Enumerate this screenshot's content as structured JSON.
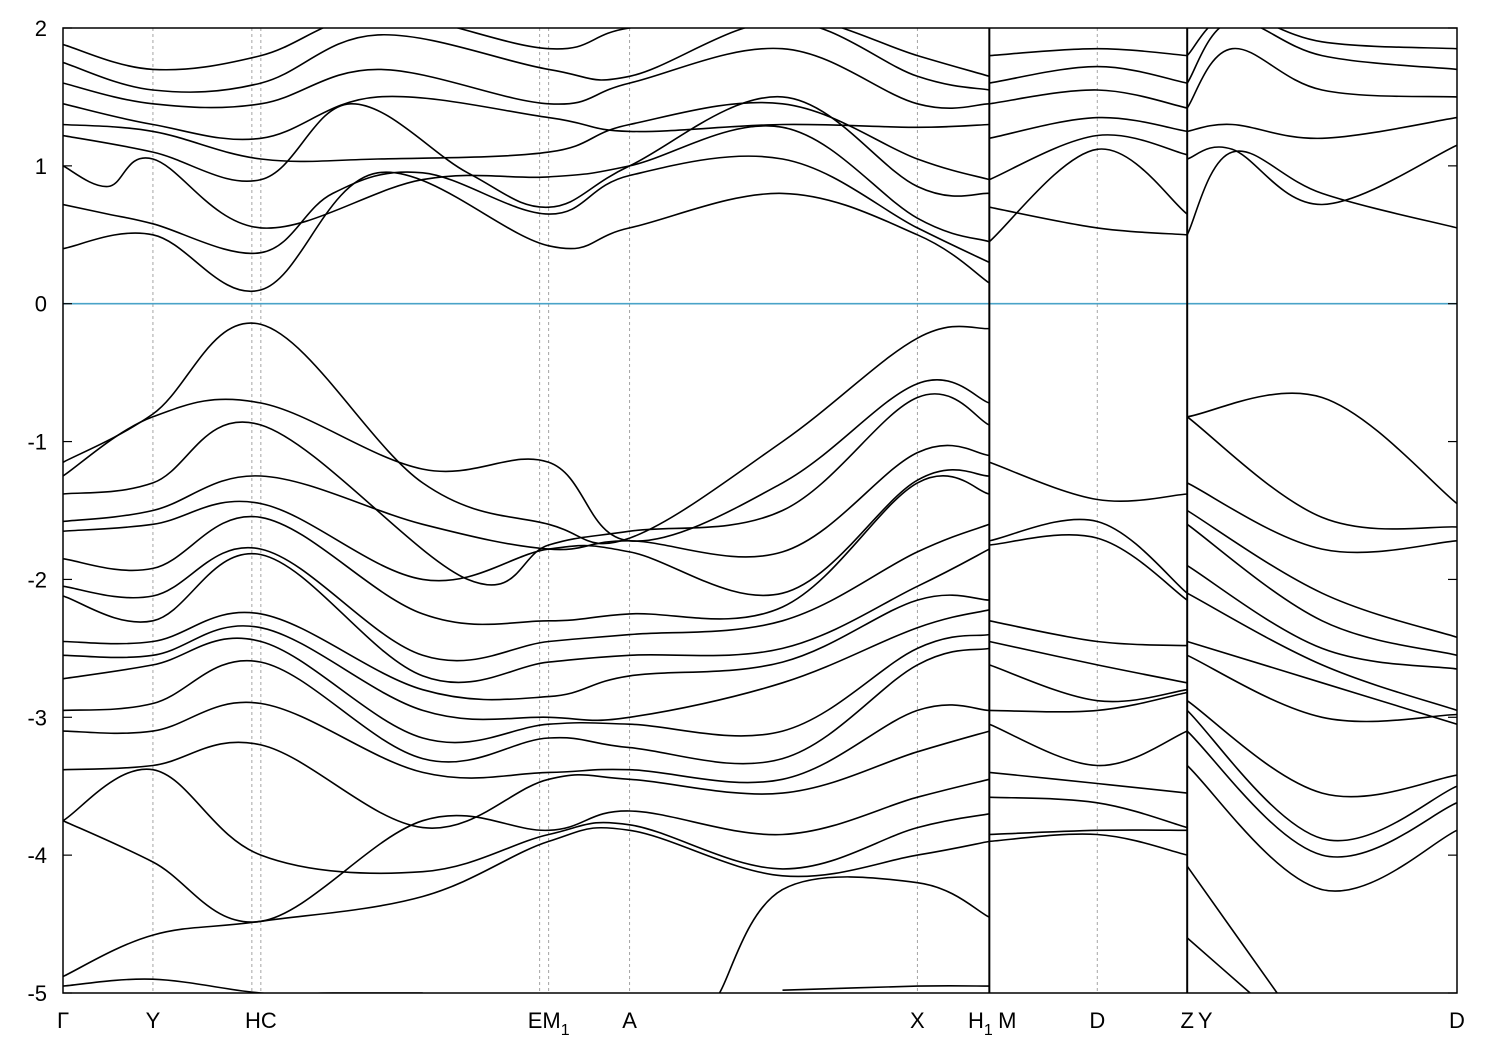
{
  "chart_data": {
    "type": "line",
    "title": "",
    "xlabel": "",
    "ylabel": "",
    "ylim": [
      -5,
      2
    ],
    "y_ticks": [
      2,
      1,
      0,
      -1,
      -2,
      -3,
      -4,
      -5
    ],
    "y_tick_labels": [
      "2",
      "1",
      "0",
      "-1",
      "-2",
      "-3",
      "-4",
      "-5"
    ],
    "fermi_level": 0,
    "grid": false,
    "kpath_segments": [
      {
        "from": "Γ",
        "to": "Y",
        "x": [
          0,
          1
        ]
      },
      {
        "from": "Y",
        "to": "HC",
        "x": [
          1,
          2.2
        ]
      },
      {
        "from": "HC",
        "to": "EM1",
        "x": [
          2.2,
          5.4
        ]
      },
      {
        "from": "EM1",
        "to": "A",
        "x": [
          5.4,
          6.3
        ]
      },
      {
        "from": "A",
        "to": "X",
        "x": [
          6.3,
          9.5
        ]
      },
      {
        "from": "X",
        "to": "H1",
        "x": [
          9.5,
          10.3
        ]
      },
      {
        "from": "M",
        "to": "D",
        "x": [
          10.3,
          11.5
        ]
      },
      {
        "from": "D",
        "to": "Z",
        "x": [
          11.5,
          12.5
        ]
      },
      {
        "from": "Y",
        "to": "D",
        "x": [
          12.5,
          15.5
        ]
      }
    ],
    "x_ticks": [
      {
        "label": "Γ",
        "x": 0
      },
      {
        "label": "Y",
        "x": 1
      },
      {
        "label": "HC",
        "x": 2.2
      },
      {
        "label": "EM",
        "sub": "1",
        "x": 5.4
      },
      {
        "label": "A",
        "x": 6.3
      },
      {
        "label": "X",
        "x": 9.5
      },
      {
        "label": "H",
        "sub": "1",
        "x": 10.2
      },
      {
        "label": "M",
        "x": 10.5
      },
      {
        "label": "D",
        "x": 11.5
      },
      {
        "label": "Z",
        "x": 12.5
      },
      {
        "label": "Y",
        "x": 12.7
      },
      {
        "label": "D",
        "x": 15.5
      }
    ],
    "high_symmetry_x": [
      1,
      2.1,
      2.2,
      5.3,
      5.4,
      6.3,
      9.5,
      10.3,
      11.5,
      12.5,
      15.5
    ],
    "path_breaks_x": [
      10.3,
      12.5
    ],
    "series": [
      {
        "x": [
          0,
          1,
          2.2,
          3.5,
          5.4,
          6.3,
          8,
          9.5,
          10.3
        ],
        "y": [
          0.4,
          0.5,
          0.1,
          0.95,
          0.42,
          0.55,
          0.8,
          0.5,
          0.15
        ]
      },
      {
        "x": [
          0,
          0.5,
          1,
          2.2,
          3,
          4,
          5.4,
          6.3,
          8,
          9.5,
          10.3
        ],
        "y": [
          0.72,
          0.65,
          0.58,
          0.37,
          0.8,
          0.95,
          0.65,
          0.93,
          1.05,
          0.55,
          0.3
        ]
      },
      {
        "x": [
          0,
          0.5,
          1,
          2.2,
          4,
          5.4,
          6.3,
          8,
          9.5,
          10.3
        ],
        "y": [
          1,
          0.85,
          1.05,
          0.55,
          0.9,
          0.92,
          1,
          1.28,
          0.62,
          0.45
        ]
      },
      {
        "x": [
          0,
          1,
          2.2,
          3.2,
          4.5,
          5.4,
          6.3,
          8,
          9.5,
          10.3
        ],
        "y": [
          1.22,
          1.1,
          0.9,
          1.45,
          0.95,
          0.7,
          1,
          1.5,
          0.85,
          0.8
        ]
      },
      {
        "x": [
          0,
          1,
          2.2,
          3.5,
          5.4,
          6.3,
          8,
          9.5,
          10.3
        ],
        "y": [
          1.3,
          1.25,
          1.05,
          1.05,
          1.1,
          1.3,
          1.45,
          1.05,
          0.9
        ]
      },
      {
        "x": [
          0,
          1,
          2.2,
          3.5,
          5.4,
          6.3,
          8,
          9.5,
          10.3
        ],
        "y": [
          1.45,
          1.3,
          1.2,
          1.5,
          1.35,
          1.25,
          1.3,
          1.28,
          1.3
        ]
      },
      {
        "x": [
          0,
          1,
          2.2,
          3.5,
          5.4,
          6.3,
          8,
          9.5,
          10.3
        ],
        "y": [
          1.6,
          1.45,
          1.45,
          1.7,
          1.45,
          1.6,
          1.85,
          1.45,
          1.45
        ]
      },
      {
        "x": [
          0,
          1,
          2.2,
          3.5,
          5.4,
          6.3,
          8,
          9.5,
          10.3
        ],
        "y": [
          1.75,
          1.55,
          1.6,
          1.95,
          1.7,
          1.65,
          2.05,
          1.65,
          1.55
        ]
      },
      {
        "x": [
          0,
          1,
          2.2,
          3.5,
          5.4,
          6.3,
          8,
          9.5,
          10.3
        ],
        "y": [
          1.88,
          1.7,
          1.8,
          2.1,
          1.85,
          2.0,
          2.1,
          1.8,
          1.65
        ]
      },
      {
        "x": [
          10.3,
          11.5,
          12.5
        ],
        "y": [
          0.7,
          0.55,
          0.5
        ]
      },
      {
        "x": [
          10.3,
          11.5,
          12.5
        ],
        "y": [
          0.45,
          1.12,
          0.65
        ]
      },
      {
        "x": [
          10.3,
          11.5,
          12.5
        ],
        "y": [
          0.9,
          1.22,
          1.08
        ]
      },
      {
        "x": [
          10.3,
          11.5,
          12.5
        ],
        "y": [
          1.2,
          1.35,
          1.25
        ]
      },
      {
        "x": [
          10.3,
          11.5,
          12.5
        ],
        "y": [
          1.45,
          1.55,
          1.42
        ]
      },
      {
        "x": [
          10.3,
          11.5,
          12.5
        ],
        "y": [
          1.6,
          1.72,
          1.6
        ]
      },
      {
        "x": [
          10.3,
          11.5,
          12.5
        ],
        "y": [
          1.8,
          1.85,
          1.8
        ]
      },
      {
        "x": [
          12.5,
          13,
          14,
          15.5
        ],
        "y": [
          0.5,
          1.1,
          0.8,
          0.55
        ]
      },
      {
        "x": [
          12.5,
          13,
          14,
          15.5
        ],
        "y": [
          1.05,
          1.12,
          0.72,
          1.15
        ]
      },
      {
        "x": [
          12.5,
          13,
          14,
          15.5
        ],
        "y": [
          1.25,
          1.3,
          1.2,
          1.35
        ]
      },
      {
        "x": [
          12.5,
          13,
          14,
          15.5
        ],
        "y": [
          1.42,
          1.85,
          1.55,
          1.5
        ]
      },
      {
        "x": [
          12.5,
          13,
          14,
          15.5
        ],
        "y": [
          1.6,
          2.05,
          1.8,
          1.7
        ]
      },
      {
        "x": [
          12.5,
          13,
          14,
          15.5
        ],
        "y": [
          1.8,
          2.1,
          1.9,
          1.85
        ]
      },
      {
        "x": [
          0,
          1,
          2.2,
          4,
          5.4,
          6.3,
          8,
          9.5,
          10.3
        ],
        "y": [
          -1.15,
          -0.8,
          -0.15,
          -1.3,
          -1.6,
          -1.7,
          -1.0,
          -0.25,
          -0.18
        ]
      },
      {
        "x": [
          0,
          1,
          2.2,
          4,
          5.4,
          6.3,
          8,
          9.5,
          10.3
        ],
        "y": [
          -1.25,
          -0.82,
          -0.72,
          -1.2,
          -1.15,
          -1.72,
          -1.3,
          -0.58,
          -0.72
        ]
      },
      {
        "x": [
          0,
          1,
          2.2,
          4.5,
          5.4,
          6.3,
          8,
          9.5,
          10.3
        ],
        "y": [
          -1.38,
          -1.3,
          -0.88,
          -2.0,
          -1.75,
          -1.65,
          -1.5,
          -0.68,
          -0.88
        ]
      },
      {
        "x": [
          0,
          1,
          2.2,
          4,
          5.4,
          6.3,
          8,
          9.5,
          10.3
        ],
        "y": [
          -1.58,
          -1.5,
          -1.25,
          -1.6,
          -1.78,
          -1.72,
          -1.8,
          -1.08,
          -1.1
        ]
      },
      {
        "x": [
          0,
          1,
          2.2,
          4,
          5.4,
          6.3,
          8,
          9.5,
          10.3
        ],
        "y": [
          -1.65,
          -1.6,
          -1.45,
          -2.0,
          -1.78,
          -1.8,
          -2.1,
          -1.28,
          -1.25
        ]
      },
      {
        "x": [
          0,
          1,
          2.2,
          4,
          5.4,
          6.3,
          8,
          9.5,
          10.3
        ],
        "y": [
          -1.85,
          -1.92,
          -1.55,
          -2.25,
          -2.3,
          -2.25,
          -2.2,
          -1.3,
          -1.38
        ]
      },
      {
        "x": [
          0,
          1,
          2.2,
          4,
          5.4,
          6.3,
          8,
          9.5,
          10.3
        ],
        "y": [
          -2.05,
          -2.12,
          -1.78,
          -2.55,
          -2.45,
          -2.4,
          -2.3,
          -1.8,
          -1.6
        ]
      },
      {
        "x": [
          0,
          1,
          2.2,
          4,
          5.4,
          6.3,
          8,
          9.5,
          10.3
        ],
        "y": [
          -2.12,
          -2.3,
          -1.82,
          -2.7,
          -2.6,
          -2.55,
          -2.5,
          -2.05,
          -1.78
        ]
      },
      {
        "x": [
          0,
          1,
          2.2,
          4,
          5.4,
          6.3,
          8,
          9.5,
          10.3
        ],
        "y": [
          -2.45,
          -2.45,
          -2.25,
          -2.8,
          -2.85,
          -2.7,
          -2.6,
          -2.15,
          -2.15
        ]
      },
      {
        "x": [
          0,
          1,
          2.2,
          4,
          5.4,
          6.3,
          8,
          9.5,
          10.3
        ],
        "y": [
          -2.55,
          -2.55,
          -2.35,
          -2.95,
          -3.0,
          -3.0,
          -2.75,
          -2.35,
          -2.22
        ]
      },
      {
        "x": [
          0,
          1,
          2.2,
          4,
          5.4,
          6.3,
          8,
          9.5,
          10.3
        ],
        "y": [
          -2.72,
          -2.62,
          -2.45,
          -3.15,
          -3.05,
          -3.05,
          -3.1,
          -2.5,
          -2.4
        ]
      },
      {
        "x": [
          0,
          1,
          2.2,
          4,
          5.4,
          6.3,
          8,
          9.5,
          10.3
        ],
        "y": [
          -2.95,
          -2.9,
          -2.6,
          -3.3,
          -3.15,
          -3.22,
          -3.3,
          -2.62,
          -2.5
        ]
      },
      {
        "x": [
          0,
          1,
          2.2,
          4,
          5.4,
          6.3,
          8,
          9.5,
          10.3
        ],
        "y": [
          -3.1,
          -3.1,
          -2.9,
          -3.4,
          -3.4,
          -3.38,
          -3.45,
          -2.95,
          -2.95
        ]
      },
      {
        "x": [
          0,
          1,
          2.2,
          4,
          5.4,
          6.3,
          8,
          9.5,
          10.3
        ],
        "y": [
          -3.38,
          -3.35,
          -3.2,
          -3.8,
          -3.45,
          -3.45,
          -3.55,
          -3.25,
          -3.1
        ]
      },
      {
        "x": [
          0,
          1,
          2.2,
          4,
          5.4,
          6.3,
          8,
          9.5,
          10.3
        ],
        "y": [
          -3.75,
          -4.05,
          -4.48,
          -3.75,
          -3.82,
          -3.68,
          -3.85,
          -3.58,
          -3.45
        ]
      },
      {
        "x": [
          0,
          1,
          2.2,
          4,
          5.4,
          6.3,
          8,
          9.5,
          10.3
        ],
        "y": [
          -3.75,
          -3.38,
          -4.0,
          -4.12,
          -3.85,
          -3.78,
          -4.1,
          -3.8,
          -3.7
        ]
      },
      {
        "x": [
          0,
          1,
          2.2,
          4,
          5.4,
          6.3,
          8,
          9.5,
          10.3
        ],
        "y": [
          -4.88,
          -4.58,
          -4.48,
          -4.3,
          -3.9,
          -3.82,
          -4.15,
          -4.0,
          -3.9
        ]
      },
      {
        "x": [
          0,
          1,
          2.2,
          3,
          4
        ],
        "y": [
          -4.95,
          -4.9,
          -5.0,
          -5.0,
          -5.0
        ]
      },
      {
        "x": [
          7.3,
          8,
          9.5,
          10.3
        ],
        "y": [
          -5.0,
          -4.25,
          -4.2,
          -4.45
        ]
      },
      {
        "x": [
          8,
          9.5,
          10.3
        ],
        "y": [
          -4.98,
          -4.95,
          -4.95
        ]
      },
      {
        "x": [
          10.3,
          11.5,
          12.5
        ],
        "y": [
          -1.15,
          -1.42,
          -1.38
        ]
      },
      {
        "x": [
          10.3,
          11.5,
          12.5
        ],
        "y": [
          -1.72,
          -1.58,
          -2.1
        ]
      },
      {
        "x": [
          10.3,
          11.5,
          12.5
        ],
        "y": [
          -1.75,
          -1.7,
          -2.15
        ]
      },
      {
        "x": [
          10.3,
          11.5,
          12.5
        ],
        "y": [
          -2.3,
          -2.45,
          -2.48
        ]
      },
      {
        "x": [
          10.3,
          11.5,
          12.5
        ],
        "y": [
          -2.45,
          -2.62,
          -2.75
        ]
      },
      {
        "x": [
          10.3,
          11.5,
          12.5
        ],
        "y": [
          -2.62,
          -2.88,
          -2.8
        ]
      },
      {
        "x": [
          10.3,
          11.5,
          12.5
        ],
        "y": [
          -2.95,
          -2.95,
          -2.82
        ]
      },
      {
        "x": [
          10.3,
          11.5,
          12.5
        ],
        "y": [
          -3.05,
          -3.35,
          -3.1
        ]
      },
      {
        "x": [
          10.3,
          11.5,
          12.5
        ],
        "y": [
          -3.4,
          -3.48,
          -3.55
        ]
      },
      {
        "x": [
          10.3,
          11.5,
          12.5
        ],
        "y": [
          -3.58,
          -3.62,
          -3.8
        ]
      },
      {
        "x": [
          10.3,
          11.5,
          12.5
        ],
        "y": [
          -3.85,
          -3.82,
          -3.82
        ]
      },
      {
        "x": [
          10.3,
          11.5,
          12.5
        ],
        "y": [
          -3.9,
          -3.85,
          -4.0
        ]
      },
      {
        "x": [
          12.5,
          14,
          15.5
        ],
        "y": [
          -0.82,
          -0.68,
          -1.45
        ]
      },
      {
        "x": [
          12.5,
          14,
          15.5
        ],
        "y": [
          -0.82,
          -1.55,
          -1.62
        ]
      },
      {
        "x": [
          12.5,
          14,
          15.5
        ],
        "y": [
          -1.3,
          -1.78,
          -1.72
        ]
      },
      {
        "x": [
          12.5,
          14,
          15.5
        ],
        "y": [
          -1.5,
          -2.1,
          -2.42
        ]
      },
      {
        "x": [
          12.5,
          14,
          15.5
        ],
        "y": [
          -1.6,
          -2.3,
          -2.55
        ]
      },
      {
        "x": [
          12.5,
          14,
          15.5
        ],
        "y": [
          -1.9,
          -2.5,
          -2.65
        ]
      },
      {
        "x": [
          12.5,
          14,
          15.5
        ],
        "y": [
          -2.1,
          -2.62,
          -2.95
        ]
      },
      {
        "x": [
          12.5,
          14,
          15.5
        ],
        "y": [
          -2.45,
          -2.75,
          -3.05
        ]
      },
      {
        "x": [
          12.5,
          14,
          15.5
        ],
        "y": [
          -2.55,
          -3.0,
          -2.98
        ]
      },
      {
        "x": [
          12.5,
          14,
          15.5
        ],
        "y": [
          -2.88,
          -3.55,
          -3.42
        ]
      },
      {
        "x": [
          12.5,
          14,
          15.5
        ],
        "y": [
          -2.95,
          -3.88,
          -3.5
        ]
      },
      {
        "x": [
          12.5,
          14,
          15.5
        ],
        "y": [
          -3.1,
          -4.0,
          -3.62
        ]
      },
      {
        "x": [
          12.5,
          14,
          15.5
        ],
        "y": [
          -3.35,
          -4.25,
          -3.82
        ]
      },
      {
        "x": [
          12.5,
          13.5
        ],
        "y": [
          -4.08,
          -5.0
        ]
      },
      {
        "x": [
          12.5,
          13.2
        ],
        "y": [
          -4.6,
          -5.0
        ]
      }
    ]
  }
}
